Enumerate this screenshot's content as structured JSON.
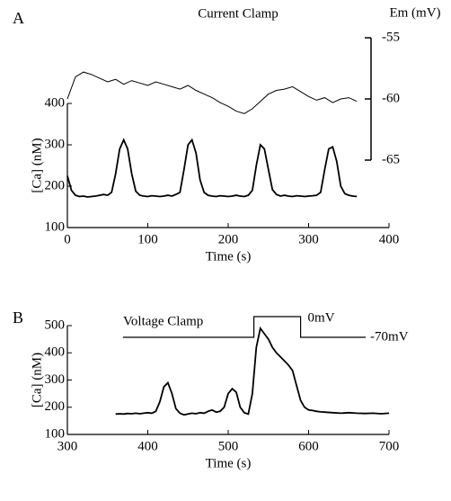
{
  "chart_data": [
    {
      "type": "line",
      "panel": "A",
      "title": "Current Clamp",
      "xlabel": "Time (s)",
      "ylabel": "[Ca] (nM)",
      "y2label": "Em (mV)",
      "xlim": [
        0,
        400
      ],
      "xticks": [
        0,
        100,
        200,
        300,
        400
      ],
      "ylim": [
        100,
        400
      ],
      "yticks": [
        100,
        200,
        300,
        400
      ],
      "y2lim": [
        -65,
        -55
      ],
      "y2ticks": [
        -55,
        -60,
        -65
      ],
      "series": [
        {
          "color": "#000000",
          "x": [
            0,
            5,
            10,
            15,
            20,
            25,
            30,
            35,
            40,
            45,
            50,
            55,
            60,
            65,
            70,
            75,
            80,
            85,
            90,
            95,
            100,
            105,
            110,
            115,
            120,
            125,
            130,
            135,
            140,
            145,
            150,
            155,
            160,
            165,
            170,
            175,
            180,
            185,
            190,
            195,
            200,
            205,
            210,
            215,
            220,
            225,
            230,
            235,
            240,
            245,
            250,
            255,
            260,
            265,
            270,
            275,
            280,
            285,
            290,
            295,
            300,
            305,
            310,
            315,
            320,
            325,
            330,
            335,
            340,
            345,
            350,
            355,
            360
          ],
          "values": [
            225,
            190,
            178,
            175,
            176,
            174,
            175,
            176,
            178,
            180,
            178,
            185,
            230,
            290,
            312,
            290,
            230,
            188,
            178,
            176,
            175,
            177,
            176,
            175,
            176,
            178,
            176,
            180,
            185,
            240,
            300,
            312,
            280,
            215,
            185,
            178,
            176,
            175,
            177,
            176,
            175,
            176,
            178,
            176,
            175,
            178,
            190,
            250,
            300,
            290,
            240,
            192,
            180,
            176,
            178,
            176,
            175,
            177,
            176,
            175,
            176,
            177,
            178,
            185,
            240,
            290,
            295,
            260,
            200,
            182,
            178,
            176,
            175
          ]
        },
        {
          "color": "#000000",
          "axis": "y2",
          "x": [
            0,
            10,
            20,
            30,
            40,
            50,
            60,
            70,
            80,
            90,
            100,
            110,
            120,
            130,
            140,
            150,
            160,
            170,
            180,
            190,
            200,
            210,
            220,
            230,
            240,
            250,
            260,
            270,
            280,
            290,
            300,
            310,
            320,
            330,
            340,
            350,
            360
          ],
          "values": [
            -60.0,
            -58.2,
            -57.8,
            -58.0,
            -58.3,
            -58.6,
            -58.4,
            -58.8,
            -58.5,
            -58.7,
            -58.9,
            -58.6,
            -58.8,
            -59.0,
            -59.2,
            -58.9,
            -59.3,
            -59.6,
            -59.9,
            -60.3,
            -60.6,
            -61.0,
            -61.2,
            -60.8,
            -60.2,
            -59.6,
            -59.3,
            -59.2,
            -59.0,
            -59.4,
            -59.8,
            -60.1,
            -59.9,
            -60.3,
            -60.0,
            -59.9,
            -60.2
          ]
        }
      ]
    },
    {
      "type": "line",
      "panel": "B",
      "title": "Voltage Clamp",
      "xlabel": "Time (s)",
      "ylabel": "[Ca] (nM)",
      "xlim": [
        300,
        700
      ],
      "xticks": [
        300,
        400,
        500,
        600,
        700
      ],
      "ylim": [
        100,
        500
      ],
      "yticks": [
        100,
        200,
        300,
        400,
        500
      ],
      "series": [
        {
          "color": "#000000",
          "x": [
            360,
            365,
            370,
            375,
            380,
            385,
            390,
            395,
            400,
            405,
            410,
            415,
            420,
            425,
            430,
            435,
            440,
            445,
            450,
            455,
            460,
            465,
            470,
            475,
            480,
            485,
            490,
            495,
            500,
            505,
            510,
            515,
            520,
            525,
            530,
            535,
            540,
            545,
            550,
            555,
            560,
            565,
            570,
            575,
            580,
            585,
            590,
            595,
            600,
            605,
            610,
            615,
            620,
            630,
            640,
            650,
            660,
            670,
            680,
            690,
            700
          ],
          "values": [
            175,
            176,
            175,
            177,
            176,
            178,
            176,
            178,
            180,
            178,
            185,
            220,
            275,
            290,
            250,
            195,
            178,
            172,
            175,
            178,
            176,
            180,
            178,
            185,
            190,
            182,
            185,
            200,
            250,
            268,
            255,
            200,
            180,
            175,
            250,
            420,
            490,
            470,
            450,
            420,
            400,
            385,
            370,
            355,
            335,
            280,
            225,
            200,
            190,
            188,
            185,
            183,
            182,
            180,
            178,
            180,
            178,
            177,
            178,
            176,
            178
          ]
        }
      ],
      "command": {
        "x": [
          369,
          532,
          532,
          590,
          590,
          671
        ],
        "values": [
          -70,
          -70,
          0,
          0,
          -70,
          -70
        ],
        "labels": [
          "0mV",
          "-70mV"
        ]
      }
    }
  ]
}
